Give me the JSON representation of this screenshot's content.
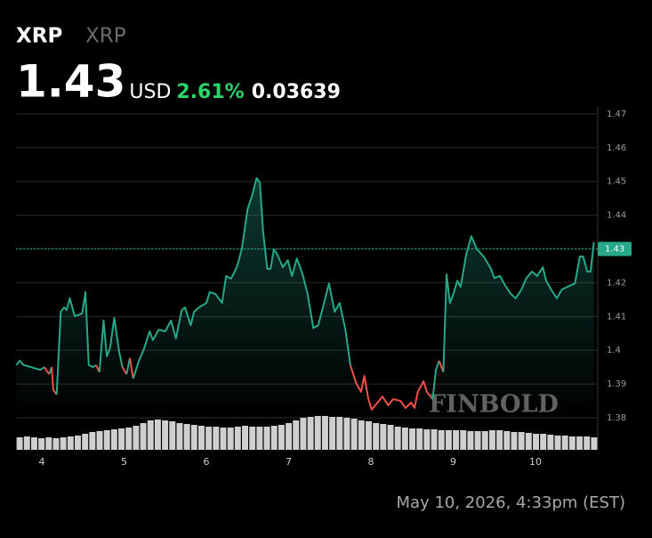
{
  "header": {
    "symbol": "XRP",
    "name": "XRP",
    "price": 1.43,
    "currency": "USD",
    "change_pct": {
      "value": 2.61,
      "label": "2.61%"
    },
    "change": 0.03639
  },
  "chart_data": {
    "type": "line",
    "x": [
      3.69,
      3.73,
      3.78,
      3.87,
      3.98,
      4.03,
      4.09,
      4.12,
      4.14,
      4.18,
      4.23,
      4.27,
      4.3,
      4.34,
      4.4,
      4.49,
      4.53,
      4.57,
      4.62,
      4.66,
      4.7,
      4.75,
      4.79,
      4.83,
      4.88,
      4.94,
      4.98,
      5.03,
      5.07,
      5.11,
      5.18,
      5.24,
      5.31,
      5.35,
      5.42,
      5.5,
      5.57,
      5.63,
      5.7,
      5.74,
      5.81,
      5.85,
      5.91,
      6.0,
      6.04,
      6.11,
      6.19,
      6.24,
      6.3,
      6.37,
      6.43,
      6.5,
      6.56,
      6.61,
      6.65,
      6.69,
      6.74,
      6.78,
      6.82,
      6.86,
      6.93,
      6.99,
      7.04,
      7.1,
      7.17,
      7.23,
      7.3,
      7.36,
      7.43,
      7.49,
      7.56,
      7.62,
      7.69,
      7.75,
      7.82,
      7.88,
      7.92,
      7.97,
      8.01,
      8.08,
      8.14,
      8.21,
      8.27,
      8.36,
      8.42,
      8.49,
      8.53,
      8.57,
      8.64,
      8.68,
      8.75,
      8.79,
      8.83,
      8.88,
      8.92,
      8.96,
      9.01,
      9.05,
      9.09,
      9.16,
      9.22,
      9.29,
      9.37,
      9.46,
      9.5,
      9.57,
      9.63,
      9.7,
      9.76,
      9.83,
      9.89,
      9.96,
      10.02,
      10.09,
      10.13,
      10.19,
      10.26,
      10.32,
      10.39,
      10.48,
      10.54,
      10.58,
      10.63,
      10.67,
      10.71
    ],
    "series": [
      {
        "color": "#26a889",
        "negative_color": "#f0504a",
        "values": [
          1.3956,
          1.3969,
          1.3956,
          1.395,
          1.3942,
          1.395,
          1.3929,
          1.395,
          1.3882,
          1.3869,
          1.4114,
          1.4127,
          1.4119,
          1.4154,
          1.4101,
          1.4109,
          1.4172,
          1.3956,
          1.395,
          1.3956,
          1.3935,
          1.4088,
          1.3982,
          1.4008,
          1.4096,
          1.3995,
          1.395,
          1.3929,
          1.3977,
          1.3916,
          1.3969,
          1.4003,
          1.4056,
          1.403,
          1.4061,
          1.4056,
          1.4088,
          1.4035,
          1.4119,
          1.4127,
          1.4074,
          1.4114,
          1.4127,
          1.414,
          1.4172,
          1.4167,
          1.414,
          1.422,
          1.4212,
          1.4246,
          1.4299,
          1.4417,
          1.4462,
          1.451,
          1.4497,
          1.4351,
          1.4241,
          1.4241,
          1.4299,
          1.4285,
          1.4246,
          1.4267,
          1.422,
          1.4272,
          1.4225,
          1.4167,
          1.4066,
          1.4074,
          1.414,
          1.4198,
          1.4114,
          1.414,
          1.4061,
          1.3956,
          1.3903,
          1.3877,
          1.3924,
          1.3855,
          1.3824,
          1.3845,
          1.3863,
          1.3837,
          1.3855,
          1.385,
          1.3829,
          1.3845,
          1.3829,
          1.3877,
          1.3908,
          1.3877,
          1.3855,
          1.3942,
          1.3969,
          1.3935,
          1.4225,
          1.414,
          1.4172,
          1.4206,
          1.4188,
          1.4285,
          1.4338,
          1.4299,
          1.4278,
          1.4241,
          1.4214,
          1.422,
          1.4193,
          1.4167,
          1.4154,
          1.418,
          1.4214,
          1.4233,
          1.422,
          1.4246,
          1.4206,
          1.418,
          1.4154,
          1.418,
          1.4188,
          1.4198,
          1.4278,
          1.4278,
          1.4233,
          1.4233,
          1.432
        ]
      }
    ],
    "volume": {
      "color": "#cfcfcf",
      "ylim": [
        0,
        100
      ],
      "values": [
        14,
        15,
        14,
        13,
        14,
        13,
        14,
        15,
        16,
        18,
        20,
        21,
        22,
        23,
        24,
        25,
        27,
        30,
        33,
        34,
        33,
        32,
        30,
        29,
        28,
        27,
        26,
        26,
        25,
        25,
        26,
        27,
        26,
        26,
        26,
        27,
        28,
        30,
        33,
        36,
        37,
        38,
        38,
        37,
        37,
        36,
        35,
        33,
        32,
        30,
        29,
        28,
        26,
        25,
        24,
        24,
        23,
        23,
        22,
        22,
        22,
        22,
        21,
        21,
        21,
        22,
        22,
        21,
        20,
        20,
        19,
        18,
        18,
        17,
        16,
        16,
        15,
        15,
        15,
        14
      ]
    },
    "xlim": [
      3.686,
      10.714
    ],
    "xticks": [
      4,
      5,
      6,
      7,
      8,
      9,
      10
    ],
    "ylim": [
      1.3705,
      1.4721
    ],
    "yticks": [
      1.38,
      1.39,
      1.4,
      1.41,
      1.42,
      1.43,
      1.44,
      1.45,
      1.46,
      1.47
    ],
    "last_price": 1.43,
    "grid": true,
    "watermark": "FINBOLD"
  },
  "footer": {
    "timestamp": "May 10, 2026, 4:33pm (EST)"
  }
}
